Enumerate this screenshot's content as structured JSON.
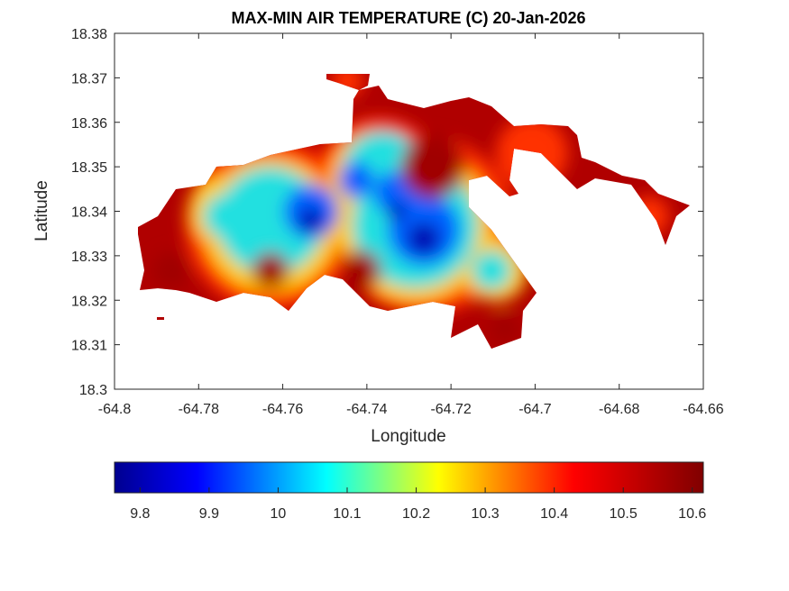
{
  "chart_data": {
    "type": "heatmap",
    "title": "MAX-MIN AIR TEMPERATURE (C) 20-Jan-2026",
    "xlabel": "Longitude",
    "ylabel": "Latitude",
    "xlim": [
      -64.8,
      -64.66
    ],
    "ylim": [
      18.3,
      18.38
    ],
    "xticks": [
      "-64.8",
      "-64.78",
      "-64.76",
      "-64.74",
      "-64.72",
      "-64.7",
      "-64.68",
      "-64.66"
    ],
    "yticks": [
      "18.3",
      "18.31",
      "18.32",
      "18.33",
      "18.34",
      "18.35",
      "18.36",
      "18.37",
      "18.38"
    ],
    "grid": false,
    "colormap": "jet",
    "colorbar": {
      "placement": "bottom",
      "range": [
        9.763,
        10.616
      ],
      "ticks": [
        "9.8",
        "9.9",
        "10",
        "10.1",
        "10.2",
        "10.3",
        "10.4",
        "10.5",
        "10.6"
      ]
    },
    "value_regions": [
      {
        "description_lon": -64.755,
        "lat": 18.335,
        "value": 9.82
      },
      {
        "description_lon": -64.728,
        "lat": 18.334,
        "value": 9.8
      },
      {
        "description_lon": -64.765,
        "lat": 18.34,
        "value": 10.1
      },
      {
        "description_lon": -64.735,
        "lat": 18.355,
        "value": 10.05
      },
      {
        "description_lon": -64.785,
        "lat": 18.325,
        "value": 10.6
      },
      {
        "description_lon": -64.72,
        "lat": 18.35,
        "value": 10.6
      }
    ]
  }
}
